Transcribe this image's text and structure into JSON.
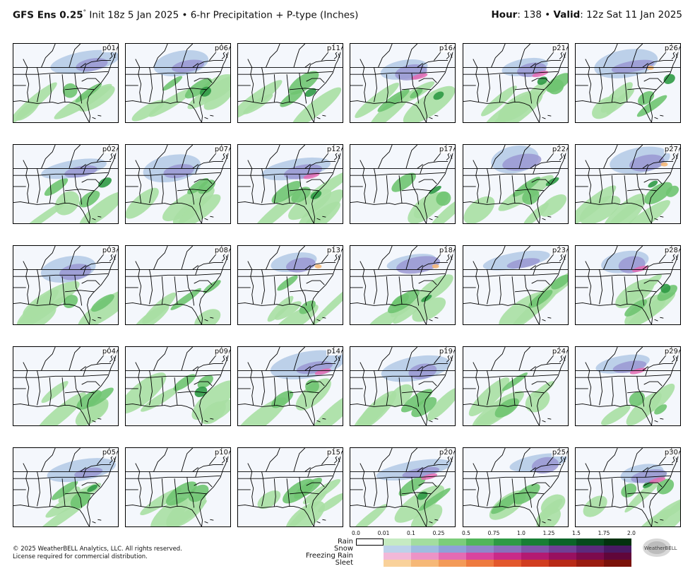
{
  "header": {
    "model": "GFS Ens 0.25",
    "degree": "°",
    "init": " Init 18z 5 Jan 2025 • 6-hr Precipitation + P-type (Inches)",
    "hour_label": "Hour",
    "hour_value": ": 138 • ",
    "valid_label": "Valid",
    "valid_value": ": 12z Sat 11 Jan 2025"
  },
  "members": [
    [
      "p01",
      "p06",
      "p11",
      "p16",
      "p21",
      "p26"
    ],
    [
      "p02",
      "p07",
      "p12",
      "p17",
      "p22",
      "p27"
    ],
    [
      "p03",
      "p08",
      "p13",
      "p18",
      "p23",
      "p28"
    ],
    [
      "p04",
      "p09",
      "p14",
      "p19",
      "p24",
      "p29"
    ],
    [
      "p05",
      "p10",
      "p15",
      "p20",
      "p25",
      "p30"
    ]
  ],
  "legend": {
    "ticks": [
      "0.0",
      "0.01",
      "0.1",
      "0.25",
      "0.5",
      "0.75",
      "1.0",
      "1.25",
      "1.5",
      "1.75",
      "2.0"
    ],
    "rows": [
      {
        "name": "Rain",
        "colors": [
          "#ffffff",
          "#ffffff",
          "#c6ebc2",
          "#a3dd9f",
          "#7ccd7a",
          "#52b65a",
          "#2f9a45",
          "#187f35",
          "#0b6428",
          "#064a1d",
          "#03320f"
        ]
      },
      {
        "name": "Snow",
        "colors": [
          "#ffffff",
          "#ffffff",
          "#bcd2ea",
          "#9fbce0",
          "#8ea1d8",
          "#8f88ca",
          "#8a70bb",
          "#7f55a8",
          "#713f95",
          "#5c2a7d",
          "#491a64"
        ]
      },
      {
        "name": "Freezing Rain",
        "colors": [
          "#ffffff",
          "#ffffff",
          "#f2b8d8",
          "#ec93c6",
          "#e46bb3",
          "#d9449e",
          "#c92a88",
          "#b31a72",
          "#981060",
          "#7c0a4d",
          "#60063a"
        ]
      },
      {
        "name": "Sleet",
        "colors": [
          "#ffffff",
          "#ffffff",
          "#f9d19a",
          "#f6b877",
          "#f39a58",
          "#ee7a3f",
          "#e3582c",
          "#d13d20",
          "#b82a17",
          "#9a1c10",
          "#7b120a"
        ]
      }
    ]
  },
  "copyright": [
    "© 2025 WeatherBELL Analytics, LLC. All rights reserved.",
    "License required for commercial distribution."
  ],
  "logo_text": "WeatherBELL"
}
